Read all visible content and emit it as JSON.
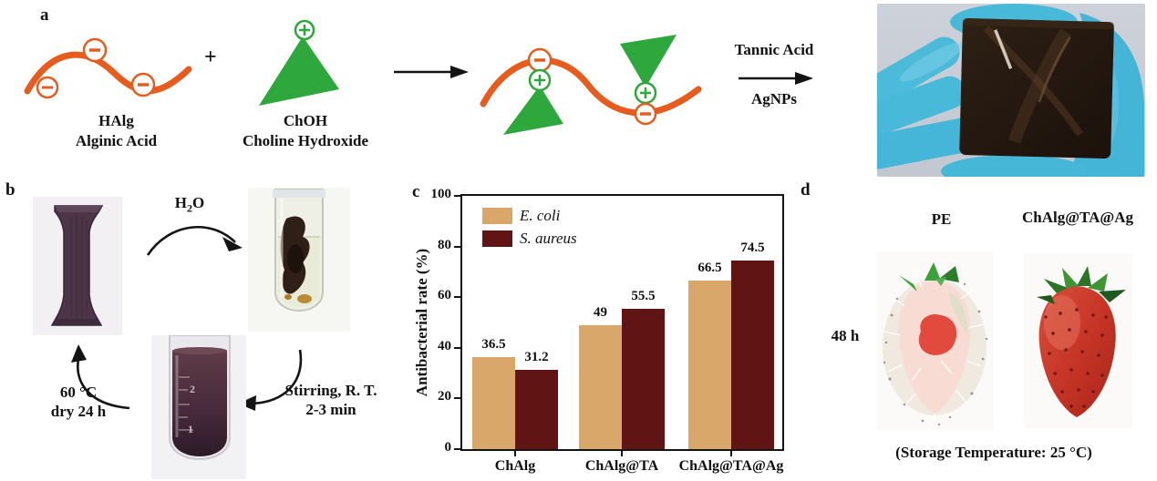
{
  "figure": {
    "panel_a": {
      "label": "a",
      "plus_sign": "+",
      "halg_abbr": "HAlg",
      "halg_name": "Alginic Acid",
      "choh_abbr": "ChOH",
      "choh_name": "Choline Hydroxide",
      "arrow_top_label": "Tannic Acid",
      "arrow_bottom_label": "AgNPs"
    },
    "panel_b": {
      "label": "b",
      "h2o": {
        "base": "H",
        "sub": "2",
        "tail": "O"
      },
      "stir_line1": "Stirring, R. T.",
      "stir_line2": "2-3 min",
      "dry_line1": "60 °C",
      "dry_line2": "dry 24 h",
      "tube_graduations": [
        "2",
        "1"
      ]
    },
    "panel_c": {
      "label": "c"
    },
    "panel_d": {
      "label": "d",
      "col1_header": "PE",
      "col2_header": "ChAlg@TA@Ag",
      "row_label": "48 h",
      "caption": "(Storage Temperature: 25 °C)"
    }
  },
  "chart_data": {
    "type": "bar",
    "title": "",
    "categories": [
      "ChAlg",
      "ChAlg@TA",
      "ChAlg@TA@Ag"
    ],
    "series": [
      {
        "name": "E. coli",
        "color": "#D9A76A",
        "values": [
          36.5,
          49,
          66.5
        ]
      },
      {
        "name": "S. aureus",
        "color": "#611414",
        "values": [
          31.2,
          55.5,
          74.5
        ]
      }
    ],
    "xlabel": "",
    "ylabel": "Antibacterial rate (%)",
    "ylim": [
      0,
      100
    ],
    "yticks": [
      0,
      20,
      40,
      60,
      80,
      100
    ],
    "grid": false,
    "legend_position": "top-left",
    "bar_value_labels": true
  },
  "colors": {
    "polymer_orange": "#E65C1E",
    "choline_green": "#2EA83C",
    "arrow_black": "#141414",
    "glove_blue": "#49B9D9",
    "film_brown": "#261A11"
  }
}
